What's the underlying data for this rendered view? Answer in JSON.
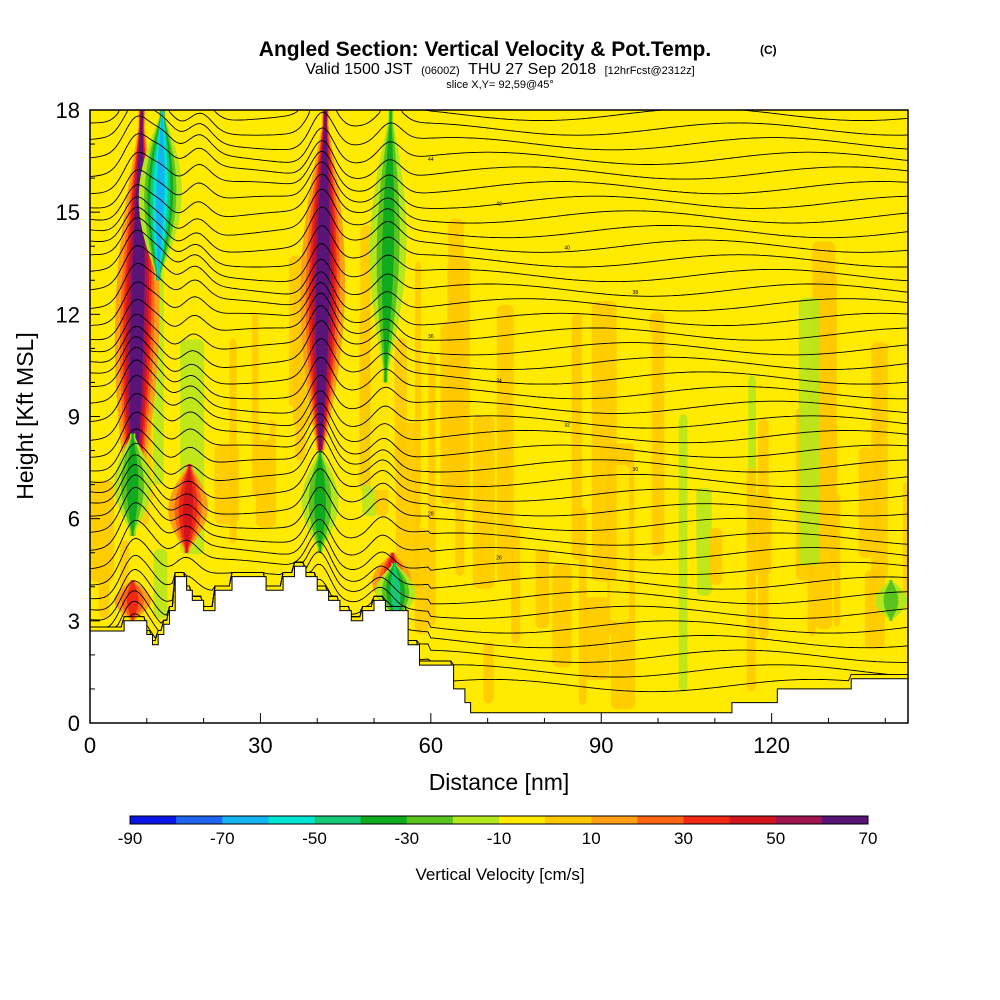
{
  "title": {
    "main": "Angled Section: Vertical Velocity & Pot.Temp.",
    "copyright": "(C)",
    "valid_prefix": "Valid 1500 JST",
    "valid_utc": "(0600Z)",
    "valid_date": "THU 27 Sep 2018",
    "forecast": "[12hrFcst@2312z]",
    "slice": "slice X,Y= 92,59@45°"
  },
  "chart_data": {
    "type": "heatmap",
    "xlabel": "Distance [nm]",
    "ylabel": "Height [Kft MSL]",
    "xlim": [
      0,
      144
    ],
    "ylim": [
      0,
      18
    ],
    "x_ticks": [
      0,
      30,
      60,
      90,
      120
    ],
    "y_ticks": [
      0,
      3,
      6,
      9,
      12,
      15,
      18
    ],
    "background_value_range": [
      -10,
      10
    ],
    "colorbar": {
      "title": "Vertical Velocity [cm/s]",
      "bounds": [
        -90,
        -80,
        -70,
        -60,
        -50,
        -40,
        -30,
        -20,
        -10,
        0,
        10,
        20,
        30,
        40,
        50,
        60,
        70
      ],
      "tick_labels": [
        "-90",
        "-70",
        "-50",
        "-30",
        "-10",
        "10",
        "30",
        "50",
        "70"
      ],
      "colors": [
        "#0a14e6",
        "#1e64f0",
        "#14b4f0",
        "#00e6d2",
        "#14c878",
        "#0faa1e",
        "#5ac31e",
        "#b4e61e",
        "#ffea00",
        "#ffc800",
        "#ffa014",
        "#ff6414",
        "#f02814",
        "#d2141e",
        "#a01450",
        "#5a1478"
      ]
    },
    "terrain_kft": [
      [
        0,
        2.7
      ],
      [
        6,
        2.7
      ],
      [
        6,
        3.0
      ],
      [
        10,
        3.0
      ],
      [
        10,
        2.6
      ],
      [
        11,
        2.6
      ],
      [
        11,
        2.3
      ],
      [
        12,
        2.3
      ],
      [
        12,
        2.6
      ],
      [
        13,
        2.6
      ],
      [
        13,
        2.9
      ],
      [
        14,
        2.9
      ],
      [
        14,
        3.3
      ],
      [
        15,
        3.3
      ],
      [
        15,
        4.3
      ],
      [
        17,
        4.3
      ],
      [
        17,
        3.9
      ],
      [
        18,
        3.9
      ],
      [
        18,
        3.6
      ],
      [
        20,
        3.6
      ],
      [
        20,
        3.3
      ],
      [
        22,
        3.3
      ],
      [
        22,
        3.9
      ],
      [
        25,
        3.9
      ],
      [
        25,
        4.3
      ],
      [
        31,
        4.3
      ],
      [
        31,
        3.9
      ],
      [
        34,
        3.9
      ],
      [
        34,
        4.3
      ],
      [
        36,
        4.3
      ],
      [
        36,
        4.6
      ],
      [
        38,
        4.6
      ],
      [
        38,
        4.3
      ],
      [
        40,
        4.3
      ],
      [
        40,
        3.9
      ],
      [
        42,
        3.9
      ],
      [
        42,
        3.6
      ],
      [
        44,
        3.6
      ],
      [
        44,
        3.3
      ],
      [
        46,
        3.3
      ],
      [
        46,
        3.0
      ],
      [
        48,
        3.0
      ],
      [
        48,
        3.3
      ],
      [
        50,
        3.3
      ],
      [
        50,
        3.6
      ],
      [
        52,
        3.6
      ],
      [
        52,
        3.3
      ],
      [
        56,
        3.3
      ],
      [
        56,
        2.3
      ],
      [
        58,
        2.3
      ],
      [
        58,
        1.7
      ],
      [
        64,
        1.7
      ],
      [
        64,
        1.0
      ],
      [
        66,
        1.0
      ],
      [
        66,
        0.6
      ],
      [
        67,
        0.6
      ],
      [
        67,
        0.3
      ],
      [
        113,
        0.3
      ],
      [
        113,
        0.6
      ],
      [
        121,
        0.6
      ],
      [
        121,
        1.0
      ],
      [
        134,
        1.0
      ],
      [
        134,
        1.3
      ],
      [
        144,
        1.3
      ]
    ],
    "updrafts": [
      {
        "x": 7.5,
        "y0": 5.5,
        "y1": 18,
        "tilt": 0.13,
        "peak": 70
      },
      {
        "x": 40.5,
        "y0": 7.5,
        "y1": 18,
        "tilt": 0.09,
        "peak": 70
      },
      {
        "x": 17,
        "y0": 5.0,
        "y1": 7.6,
        "tilt": 0.2,
        "peak": 40
      },
      {
        "x": 53,
        "y0": 3.3,
        "y1": 5.0,
        "tilt": 0.15,
        "peak": 40
      },
      {
        "x": 7.5,
        "y0": 3.0,
        "y1": 4.2,
        "tilt": 0.0,
        "peak": 30
      }
    ],
    "downdrafts": [
      {
        "x": 12,
        "y0": 13,
        "y1": 18,
        "tilt": 0.15,
        "peak": -60
      },
      {
        "x": 7.5,
        "y0": 5.5,
        "y1": 8.5,
        "tilt": 0.0,
        "peak": -30
      },
      {
        "x": 40.5,
        "y0": 5.0,
        "y1": 8.0,
        "tilt": 0.0,
        "peak": -30
      },
      {
        "x": 52,
        "y0": 10,
        "y1": 18,
        "tilt": 0.12,
        "peak": -30
      },
      {
        "x": 54,
        "y0": 3.0,
        "y1": 4.7,
        "tilt": -0.25,
        "peak": -40
      },
      {
        "x": 141,
        "y0": 3.0,
        "y1": 4.2,
        "tilt": 0.0,
        "peak": -20
      }
    ],
    "isentrope_labels": [
      "44",
      "42",
      "40",
      "38",
      "36",
      "34",
      "32",
      "30",
      "28",
      "26"
    ]
  }
}
